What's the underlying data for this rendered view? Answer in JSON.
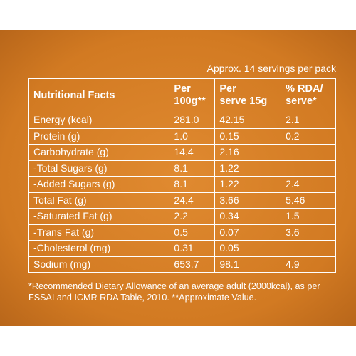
{
  "header": {
    "note": "Approx. 14 servings per pack"
  },
  "table": {
    "columns": [
      [
        "Nutritional Facts"
      ],
      [
        "Per",
        "100g**"
      ],
      [
        "Per",
        "serve 15g"
      ],
      [
        "% RDA/",
        "serve*"
      ]
    ],
    "rows": [
      [
        "Energy (kcal)",
        "281.0",
        "42.15",
        "2.1"
      ],
      [
        "Protein (g)",
        "1.0",
        "0.15",
        "0.2"
      ],
      [
        "Carbohydrate (g)",
        "14.4",
        "2.16",
        null
      ],
      [
        "-Total Sugars (g)",
        "8.1",
        "1.22",
        null
      ],
      [
        "-Added Sugars (g)",
        "8.1",
        "1.22",
        "2.4"
      ],
      [
        "Total Fat (g)",
        "24.4",
        "3.66",
        "5.46"
      ],
      [
        "-Saturated Fat (g)",
        "2.2",
        "0.34",
        "1.5"
      ],
      [
        "-Trans Fat (g)",
        "0.5",
        "0.07",
        "3.6"
      ],
      [
        "-Cholesterol (mg)",
        "0.31",
        "0.05",
        null
      ],
      [
        "Sodium (mg)",
        "653.7",
        "98.1",
        "4.9"
      ]
    ]
  },
  "footnote": [
    "*Recommended Dietary Allowance of an average adult (2000kcal), as per",
    "FSSAI and ICMR RDA Table, 2010. **Approximate Value."
  ]
}
